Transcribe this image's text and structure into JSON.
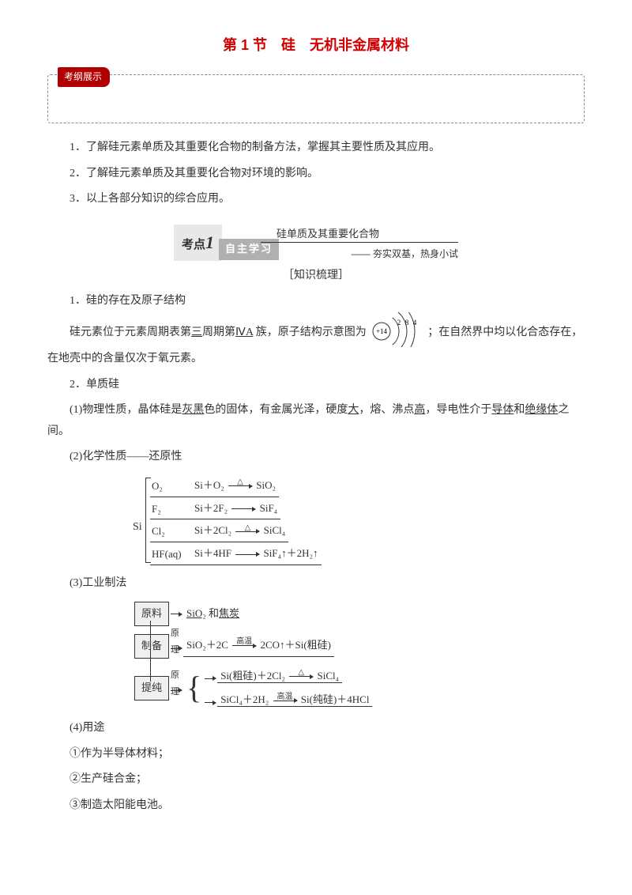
{
  "title": "第 1 节　硅　无机非金属材料",
  "examTag": "考纲展示",
  "outline": {
    "p1": "1．了解硅元素单质及其重要化合物的制备方法，掌握其主要性质及其应用。",
    "p2": "2．了解硅元素单质及其重要化合物对环境的影响。",
    "p3": "3．以上各部分知识的综合应用。"
  },
  "kaodian": {
    "label": "考点",
    "num": "1",
    "topic": "硅单质及其重要化合物",
    "self": "自主学习",
    "sub": "—— 夯实双基，热身小试"
  },
  "zhishi": "［知识梳理］",
  "s1": {
    "h": "1．硅的存在及原子结构",
    "body_a": "硅元素位于元素周期表第",
    "u1": "三",
    "body_b": "周期第",
    "u2": "ⅣA",
    "body_c": " 族，原子结构示意图为",
    "body_d": "；在自然界中均以化合态存在，在地壳中的含量仅次于氧元素。"
  },
  "atom": {
    "nucleus": "+14",
    "shells": [
      "2",
      "8",
      "4"
    ]
  },
  "s2": {
    "h": "2．单质硅",
    "p1a": "(1)物理性质，晶体硅是",
    "u1": "灰黑",
    "p1b": "色的固体，有金属光泽，硬度",
    "u2": "大",
    "p1c": "，熔、沸点",
    "u3": "高",
    "p1d": "，导电性介于",
    "u4": "导体",
    "p1e": "和",
    "u5": "绝缘体",
    "p1f": "之间。"
  },
  "s2_2": "(2)化学性质——还原性",
  "reactions": {
    "siLabel": "Si",
    "rows": [
      {
        "reagent": "O₂",
        "eq_l": "Si＋O₂",
        "cond": "△",
        "eq_r": "SiO₂"
      },
      {
        "reagent": "F₂",
        "eq_l": "Si＋2F₂",
        "cond": "",
        "eq_r": "SiF₄"
      },
      {
        "reagent": "Cl₂",
        "eq_l": "Si＋2Cl₂",
        "cond": "△",
        "eq_r": "SiCl₄"
      },
      {
        "reagent": "HF(aq)",
        "eq_l": "Si＋4HF",
        "cond": "",
        "eq_r": "SiF₄↑＋2H₂↑"
      }
    ]
  },
  "s2_3": "(3)工业制法",
  "process": {
    "step1": {
      "box": "原料",
      "arrowLabel": "",
      "text_a": "",
      "u": "SiO₂",
      "text_b": " 和",
      "u2": "焦炭"
    },
    "step2": {
      "box": "制备",
      "arrowLabel": "原理",
      "eq_l": "SiO₂＋2C",
      "cond": "高温",
      "eq_r": "2CO↑＋Si(粗硅)"
    },
    "step3": {
      "box": "提纯",
      "arrowLabel": "原理",
      "line1": {
        "eq_l": "Si(粗硅)＋2Cl₂",
        "cond": "△",
        "eq_r": "SiCl₄"
      },
      "line2": {
        "eq_l": "SiCl₄＋2H₂",
        "cond": "高温",
        "eq_r": "Si(纯硅)＋4HCl"
      }
    }
  },
  "s2_4": {
    "h": "(4)用途",
    "p1": "①作为半导体材料；",
    "p2": "②生产硅合金；",
    "p3": "③制造太阳能电池。"
  }
}
